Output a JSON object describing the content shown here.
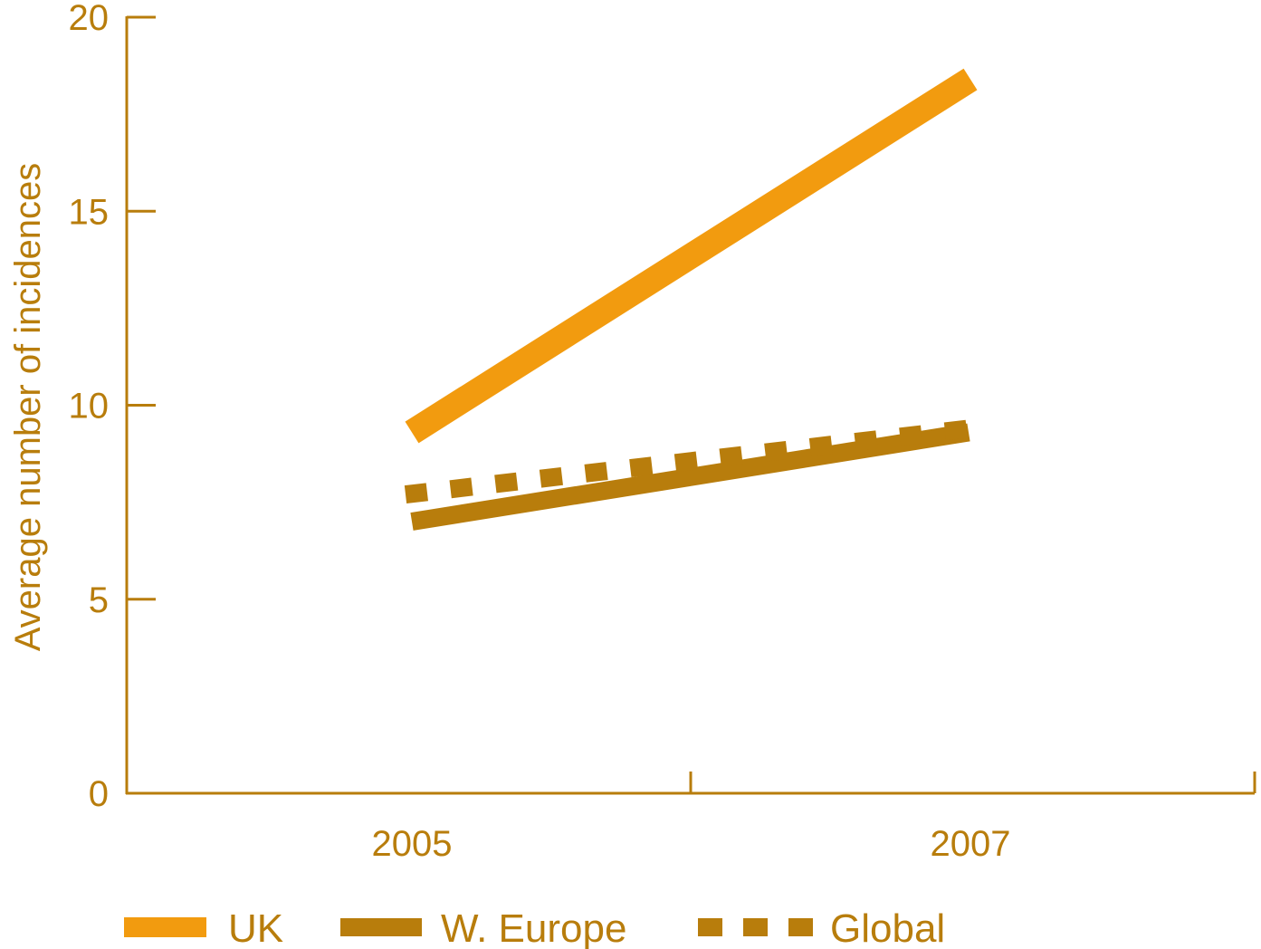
{
  "chart_data": {
    "type": "line",
    "title": "",
    "xlabel": "",
    "ylabel": "Average number of incidences",
    "categories": [
      "2005",
      "2007"
    ],
    "ylim": [
      0,
      20
    ],
    "yticks": [
      "0",
      "5",
      "10",
      "15",
      "20"
    ],
    "grid": false,
    "legend_position": "bottom",
    "series": [
      {
        "name": "UK",
        "values": [
          9.3,
          18.4
        ],
        "color": "#f29b0f",
        "style": "solid"
      },
      {
        "name": "W. Europe",
        "values": [
          7.0,
          9.3
        ],
        "color": "#b87d0c",
        "style": "solid"
      },
      {
        "name": "Global",
        "values": [
          7.7,
          9.4
        ],
        "color": "#b87d0c",
        "style": "dashed"
      }
    ]
  },
  "colors": {
    "axis": "#b87d0c",
    "text": "#b87d0c"
  }
}
